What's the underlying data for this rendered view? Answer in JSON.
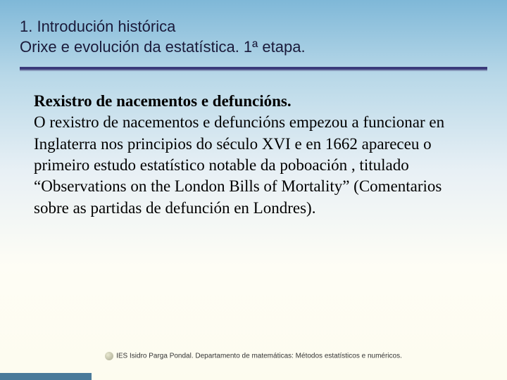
{
  "header": {
    "line1": "1. Introdución histórica",
    "line2": "Orixe e evolución da estatística. 1ª etapa."
  },
  "content": {
    "subtitle": "Rexistro de nacementos e defuncións.",
    "body": "O rexistro de nacementos e defuncións empezou a funcionar en Inglaterra nos principios do século XVI e en 1662 apareceu o primeiro estudo estatístico notable da poboación , titulado “Observations on the London Bills of Mortality” (Comentarios sobre as partidas de defunción en Londres)."
  },
  "footer": {
    "text": "IES Isidro Parga Pondal. Departamento de matemáticas: Métodos estatísticos e numéricos."
  },
  "colors": {
    "underline": "#3a3a7a",
    "bottom_bar": "#4a7a9a"
  }
}
